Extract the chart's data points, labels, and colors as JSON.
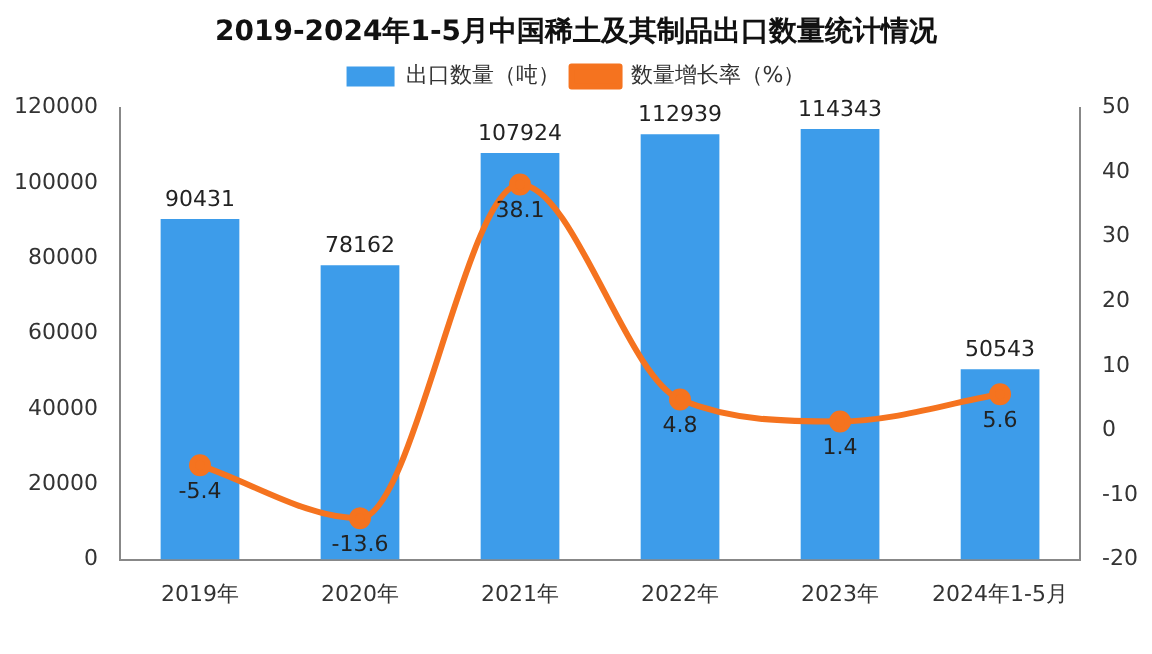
{
  "chart_data": {
    "type": "bar",
    "title": "2019-2024年1-5月中国稀土及其制品出口数量统计情况",
    "categories": [
      "2019年",
      "2020年",
      "2021年",
      "2022年",
      "2023年",
      "2024年1-5月"
    ],
    "series": [
      {
        "name": "出口数量（吨）",
        "color": "#3d9cea",
        "values": [
          90431,
          78162,
          107924,
          112939,
          114343,
          50543
        ]
      },
      {
        "name": "数量增长率（%）",
        "type": "line",
        "axis": "y2",
        "color": "#f5731f",
        "values": [
          -5.4,
          -13.6,
          38.1,
          4.8,
          1.4,
          5.6
        ],
        "marker": "circle"
      }
    ],
    "ylim": [
      0,
      120000
    ],
    "yticks": [
      0,
      20000,
      40000,
      60000,
      80000,
      100000,
      120000
    ],
    "y2lim": [
      -20,
      50
    ],
    "y2ticks": [
      -20,
      -10,
      0,
      10,
      20,
      30,
      40,
      50
    ],
    "legend": "top",
    "data_labels": true,
    "grid": false
  }
}
